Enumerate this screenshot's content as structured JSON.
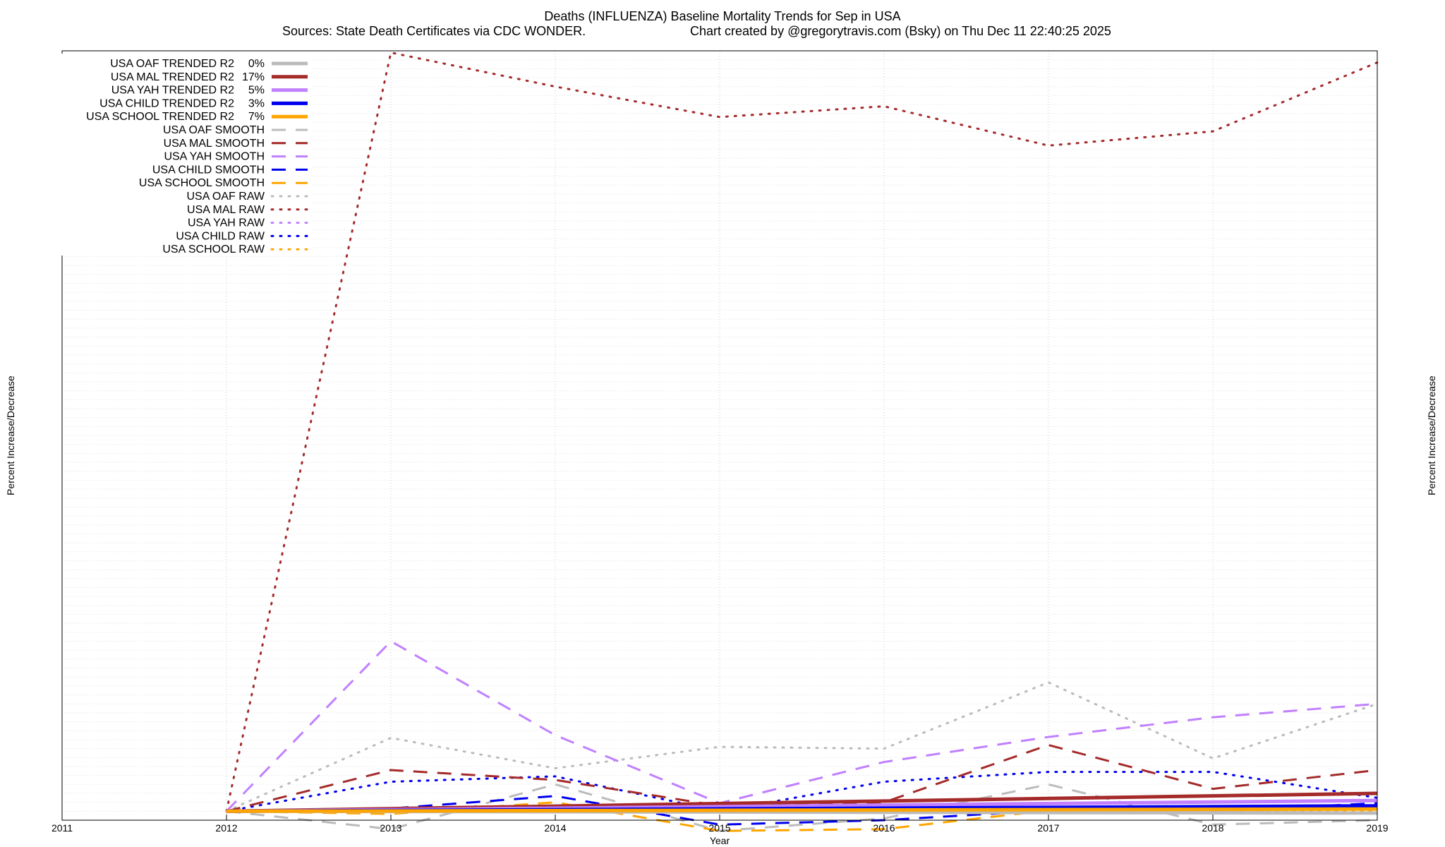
{
  "chart_data": {
    "type": "line",
    "title": "Deaths (INFLUENZA)  Baseline Mortality Trends for Sep in USA",
    "subtitle_left": "Sources: State Death Certificates via CDC WONDER.",
    "subtitle_right": "Chart created by @gregorytravis.com (Bsky) on Thu Dec 11 22:40:25 2025",
    "xlabel": "Year",
    "ylabel": "Percent Increase/Decrease",
    "xlim": [
      2011,
      2019
    ],
    "ylim": [
      -100,
      8500
    ],
    "x_ticks": [
      "2011",
      "2012",
      "2013",
      "2014",
      "2015",
      "2016",
      "2017",
      "2018",
      "2019"
    ],
    "grid": true,
    "legend_position": "top-left",
    "series": [
      {
        "name": "USA OAF TRENDED R2",
        "r2_label": "0%",
        "style": "trended",
        "color": "#bbbbbb",
        "x": [
          2012,
          2019
        ],
        "values": [
          0,
          -20
        ]
      },
      {
        "name": "USA MAL TRENDED R2",
        "r2_label": "17%",
        "style": "trended",
        "color": "#a52a2a",
        "x": [
          2012,
          2019
        ],
        "values": [
          0,
          200
        ]
      },
      {
        "name": "USA YAH TRENDED R2",
        "r2_label": "5%",
        "style": "trended",
        "color": "#c080ff",
        "x": [
          2012,
          2019
        ],
        "values": [
          0,
          120
        ]
      },
      {
        "name": "USA CHILD TRENDED R2",
        "r2_label": "3%",
        "style": "trended",
        "color": "#0000ee",
        "x": [
          2012,
          2019
        ],
        "values": [
          0,
          60
        ]
      },
      {
        "name": "USA SCHOOL TRENDED R2",
        "r2_label": "7%",
        "style": "trended",
        "color": "#ffa500",
        "x": [
          2012,
          2019
        ],
        "values": [
          0,
          25
        ]
      },
      {
        "name": "USA OAF SMOOTH",
        "style": "smooth",
        "color": "#bbbbbb",
        "x": [
          2012,
          2013,
          2014,
          2015,
          2016,
          2017,
          2018,
          2019
        ],
        "values": [
          0,
          -200,
          300,
          -220,
          -80,
          300,
          -150,
          -100
        ]
      },
      {
        "name": "USA MAL SMOOTH",
        "style": "smooth",
        "color": "#a52a2a",
        "x": [
          2012,
          2013,
          2014,
          2015,
          2016,
          2017,
          2018,
          2019
        ],
        "values": [
          0,
          460,
          350,
          60,
          100,
          740,
          250,
          460
        ]
      },
      {
        "name": "USA YAH SMOOTH",
        "style": "smooth",
        "color": "#c080ff",
        "x": [
          2012,
          2013,
          2014,
          2015,
          2016,
          2017,
          2018,
          2019
        ],
        "values": [
          0,
          1900,
          850,
          90,
          550,
          830,
          1050,
          1200
        ]
      },
      {
        "name": "USA CHILD SMOOTH",
        "style": "smooth",
        "color": "#0000ee",
        "x": [
          2012,
          2013,
          2014,
          2015,
          2016,
          2017,
          2018,
          2019
        ],
        "values": [
          0,
          30,
          170,
          -150,
          -100,
          10,
          0,
          90
        ]
      },
      {
        "name": "USA SCHOOL SMOOTH",
        "style": "smooth",
        "color": "#ffa500",
        "x": [
          2012,
          2013,
          2014,
          2015,
          2016,
          2017,
          2018,
          2019
        ],
        "values": [
          0,
          -30,
          100,
          -220,
          -200,
          10,
          0,
          40
        ]
      },
      {
        "name": "USA OAF RAW",
        "style": "raw",
        "color": "#bbbbbb",
        "x": [
          2012,
          2013,
          2014,
          2015,
          2016,
          2017,
          2018,
          2019
        ],
        "values": [
          0,
          820,
          480,
          720,
          700,
          1440,
          590,
          1200
        ]
      },
      {
        "name": "USA MAL RAW",
        "style": "raw",
        "color": "#a52a2a",
        "x": [
          2012,
          2013,
          2014,
          2015,
          2016,
          2017,
          2018,
          2019
        ],
        "values": [
          0,
          8480,
          8100,
          7760,
          7880,
          7440,
          7600,
          8370
        ]
      },
      {
        "name": "USA YAH RAW",
        "style": "raw",
        "color": "#c080ff",
        "x": [
          2012,
          2013,
          2014,
          2015,
          2016,
          2017,
          2018,
          2019
        ],
        "values": [
          0,
          20,
          10,
          15,
          0,
          10,
          5,
          0
        ]
      },
      {
        "name": "USA CHILD RAW",
        "style": "raw",
        "color": "#0000ee",
        "x": [
          2012,
          2013,
          2014,
          2015,
          2016,
          2017,
          2018,
          2019
        ],
        "values": [
          0,
          330,
          390,
          0,
          330,
          440,
          440,
          150
        ]
      },
      {
        "name": "USA SCHOOL RAW",
        "style": "raw",
        "color": "#ffa500",
        "x": [
          2012,
          2013,
          2014,
          2015,
          2016,
          2017,
          2018,
          2019
        ],
        "values": [
          0,
          0,
          0,
          0,
          0,
          0,
          0,
          0
        ]
      }
    ]
  }
}
